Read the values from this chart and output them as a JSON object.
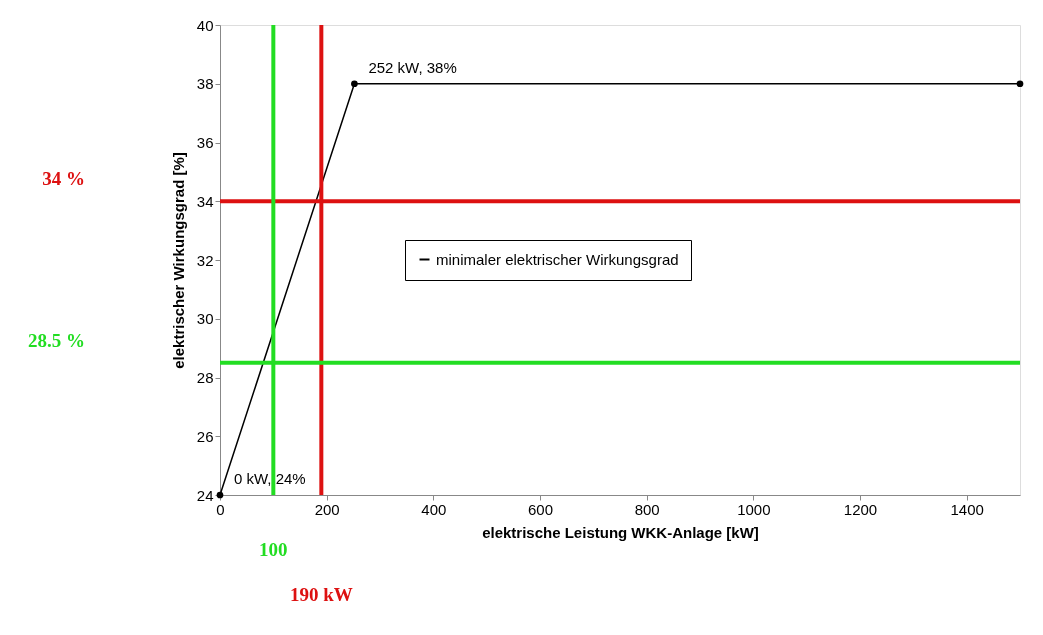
{
  "chart_data": {
    "type": "line",
    "xlabel": "elektrische Leistung WKK-Anlage [kW]",
    "ylabel": "elektrischer Wirkungsgrad [%]",
    "x": [
      0,
      252,
      1500
    ],
    "series": [
      {
        "name": "minimaler elektrischer Wirkungsgrad",
        "color": "#000000",
        "values": [
          24,
          38,
          38
        ]
      }
    ],
    "xlim": [
      0,
      1500
    ],
    "xticks": [
      0,
      200,
      400,
      600,
      800,
      1000,
      1200,
      1400
    ],
    "ylim": [
      24,
      40
    ],
    "yticks": [
      24,
      26,
      28,
      30,
      32,
      34,
      36,
      38,
      40
    ],
    "marker": "circle",
    "line_style": "solid",
    "grid": false,
    "legend": "center",
    "annotations": [
      {
        "text": "252 kW, 38%",
        "x": 252,
        "y": 38
      },
      {
        "text": "0 kW, 24%",
        "x": 0,
        "y": 24
      }
    ],
    "ref_lines": [
      {
        "axis": "y",
        "value": 34,
        "label": "34 %",
        "color": "#dd1111"
      },
      {
        "axis": "x",
        "value": 190,
        "label": "190 kW",
        "color": "#dd1111"
      },
      {
        "axis": "y",
        "value": 28.5,
        "label": "28.5 %",
        "color": "#22dd22"
      },
      {
        "axis": "x",
        "value": 100,
        "label": "100",
        "color": "#22dd22"
      }
    ]
  }
}
